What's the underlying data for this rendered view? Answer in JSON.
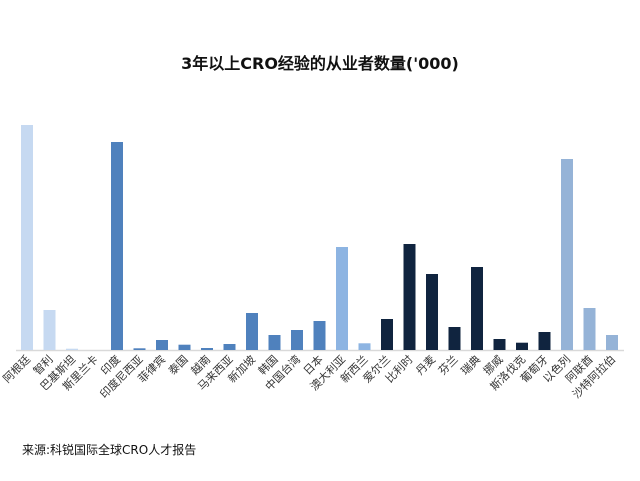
{
  "chart_data": {
    "type": "bar",
    "title": "3年以上CRO经验的从业者数量('000)",
    "source": "来源:科锐国际全球CRO人才报告",
    "xlabel": "",
    "ylabel": "",
    "grid": false,
    "legend": "none",
    "categories": [
      "阿根廷",
      "智利",
      "巴基斯坦",
      "斯里兰卡",
      "印度",
      "印度尼西亚",
      "菲律宾",
      "泰国",
      "越南",
      "马来西亚",
      "新加坡",
      "韩国",
      "中国台湾",
      "日本",
      "澳大利亚",
      "新西兰",
      "爱尔兰",
      "比利时",
      "丹麦",
      "芬兰",
      "瑞典",
      "挪威",
      "斯洛伐克",
      "葡萄牙",
      "以色列",
      "阿联酋",
      "沙特阿拉伯"
    ],
    "values": [
      225,
      40,
      1.3,
      0,
      208,
      1.7,
      10,
      5.3,
      2,
      6,
      37,
      15,
      20,
      29,
      103,
      6.7,
      31,
      106,
      76,
      23,
      83,
      11,
      7.3,
      18,
      191,
      42,
      15
    ],
    "colors": [
      "#c6d9f1",
      "#c6d9f1",
      "#c6d9f1",
      "#c6d9f1",
      "#4f81bd",
      "#4f81bd",
      "#4f81bd",
      "#4f81bd",
      "#4f81bd",
      "#4f81bd",
      "#4f81bd",
      "#4f81bd",
      "#4f81bd",
      "#4f81bd",
      "#8db4e2",
      "#8db4e2",
      "#10243f",
      "#10243f",
      "#10243f",
      "#10243f",
      "#10243f",
      "#10243f",
      "#10243f",
      "#10243f",
      "#95b3d7",
      "#95b3d7",
      "#95b3d7"
    ],
    "ylim": [
      0,
      225
    ]
  }
}
